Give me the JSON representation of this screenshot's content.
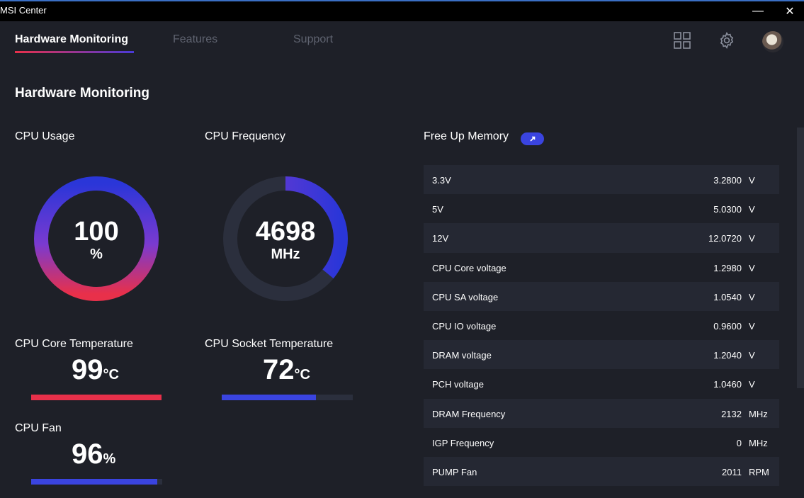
{
  "window": {
    "title": "MSI Center",
    "minimize": "—",
    "close": "✕"
  },
  "nav": {
    "tabs": [
      {
        "label": "Hardware Monitoring"
      },
      {
        "label": "Features"
      },
      {
        "label": "Support"
      }
    ],
    "icons": [
      "apps-grid-icon",
      "gear-icon",
      "avatar"
    ]
  },
  "page": {
    "title": "Hardware Monitoring"
  },
  "cpu_usage": {
    "label": "CPU Usage",
    "value": "100",
    "unit": "%",
    "percent": 100
  },
  "cpu_frequency": {
    "label": "CPU Frequency",
    "value": "4698",
    "unit": "MHz",
    "fraction": 0.36
  },
  "cpu_core_temp": {
    "label": "CPU Core Temperature",
    "value": "99",
    "unit": "°C",
    "fraction": 1.0
  },
  "cpu_socket_temp": {
    "label": "CPU Socket Temperature",
    "value": "72",
    "unit": "°C",
    "fraction": 0.72
  },
  "cpu_fan": {
    "label": "CPU Fan",
    "value": "96",
    "unit": "%",
    "fraction": 0.96
  },
  "free_up_memory": {
    "label": "Free Up Memory"
  },
  "sensors": [
    {
      "name": "3.3V",
      "value": "3.2800",
      "unit": "V"
    },
    {
      "name": "5V",
      "value": "5.0300",
      "unit": "V"
    },
    {
      "name": "12V",
      "value": "12.0720",
      "unit": "V"
    },
    {
      "name": "CPU Core voltage",
      "value": "1.2980",
      "unit": "V"
    },
    {
      "name": "CPU SA voltage",
      "value": "1.0540",
      "unit": "V"
    },
    {
      "name": "CPU IO voltage",
      "value": "0.9600",
      "unit": "V"
    },
    {
      "name": "DRAM voltage",
      "value": "1.2040",
      "unit": "V"
    },
    {
      "name": "PCH voltage",
      "value": "1.0460",
      "unit": "V"
    },
    {
      "name": "DRAM Frequency",
      "value": "2132",
      "unit": "MHz"
    },
    {
      "name": "IGP Frequency",
      "value": "0",
      "unit": "MHz"
    },
    {
      "name": "PUMP Fan",
      "value": "2011",
      "unit": "RPM"
    },
    {
      "name": "",
      "value": "",
      "unit": ""
    }
  ],
  "colors": {
    "accent_red": "#e8304a",
    "accent_blue": "#3a44e0",
    "bg": "#1e2028"
  }
}
